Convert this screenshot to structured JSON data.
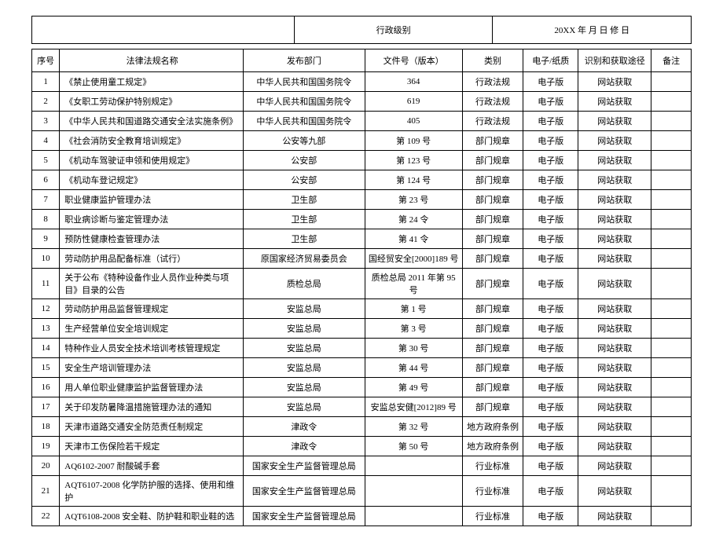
{
  "header": {
    "left": "",
    "center": "行政级别",
    "right": "20XX 年 月 日 修 日"
  },
  "columns": {
    "seq": "序号",
    "name": "法律法规名称",
    "dept": "发布部门",
    "doc": "文件号（版本）",
    "cat": "类别",
    "fmt": "电子/纸质",
    "src": "识别和获取途径",
    "note": "备注"
  },
  "rows": [
    {
      "seq": "1",
      "name": "《禁止使用童工规定》",
      "dept": "中华人民共和国国务院令",
      "doc": "364",
      "cat": "行政法规",
      "fmt": "电子版",
      "src": "网站获取",
      "note": ""
    },
    {
      "seq": "2",
      "name": "《女职工劳动保护特别规定》",
      "dept": "中华人民共和国国务院令",
      "doc": "619",
      "cat": "行政法规",
      "fmt": "电子版",
      "src": "网站获取",
      "note": ""
    },
    {
      "seq": "3",
      "name": "《中华人民共和国道路交通安全法实施条例》",
      "dept": "中华人民共和国国务院令",
      "doc": "405",
      "cat": "行政法规",
      "fmt": "电子版",
      "src": "网站获取",
      "note": ""
    },
    {
      "seq": "4",
      "name": "《社会消防安全教育培训规定》",
      "dept": "公安等九部",
      "doc": "第 109 号",
      "cat": "部门规章",
      "fmt": "电子版",
      "src": "网站获取",
      "note": ""
    },
    {
      "seq": "5",
      "name": "《机动车驾驶证申领和使用规定》",
      "dept": "公安部",
      "doc": "第 123 号",
      "cat": "部门规章",
      "fmt": "电子版",
      "src": "网站获取",
      "note": ""
    },
    {
      "seq": "6",
      "name": "《机动车登记规定》",
      "dept": "公安部",
      "doc": "第 124 号",
      "cat": "部门规章",
      "fmt": "电子版",
      "src": "网站获取",
      "note": ""
    },
    {
      "seq": "7",
      "name": "职业健康监护管理办法",
      "dept": "卫生部",
      "doc": "第 23 号",
      "cat": "部门规章",
      "fmt": "电子版",
      "src": "网站获取",
      "note": ""
    },
    {
      "seq": "8",
      "name": "职业病诊断与鉴定管理办法",
      "dept": "卫生部",
      "doc": "第 24 令",
      "cat": "部门规章",
      "fmt": "电子版",
      "src": "网站获取",
      "note": ""
    },
    {
      "seq": "9",
      "name": "预防性健康检查管理办法",
      "dept": "卫生部",
      "doc": "第 41 令",
      "cat": "部门规章",
      "fmt": "电子版",
      "src": "网站获取",
      "note": ""
    },
    {
      "seq": "10",
      "name": "劳动防护用品配备标准（试行）",
      "dept": "原国家经济贸易委员会",
      "doc": "国经贸安全[2000]189 号",
      "cat": "部门规章",
      "fmt": "电子版",
      "src": "网站获取",
      "note": ""
    },
    {
      "seq": "11",
      "name": "关于公布《特种设备作业人员作业种类与项目》目录的公告",
      "dept": "质检总局",
      "doc": "质检总局 2011 年第 95 号",
      "cat": "部门规章",
      "fmt": "电子版",
      "src": "网站获取",
      "note": ""
    },
    {
      "seq": "12",
      "name": "劳动防护用品监督管理规定",
      "dept": "安监总局",
      "doc": "第 1 号",
      "cat": "部门规章",
      "fmt": "电子版",
      "src": "网站获取",
      "note": ""
    },
    {
      "seq": "13",
      "name": "生产经营单位安全培训规定",
      "dept": "安监总局",
      "doc": "第 3 号",
      "cat": "部门规章",
      "fmt": "电子版",
      "src": "网站获取",
      "note": ""
    },
    {
      "seq": "14",
      "name": "特种作业人员安全技术培训考核管理规定",
      "dept": "安监总局",
      "doc": "第 30 号",
      "cat": "部门规章",
      "fmt": "电子版",
      "src": "网站获取",
      "note": ""
    },
    {
      "seq": "15",
      "name": "安全生产培训管理办法",
      "dept": "安监总局",
      "doc": "第 44 号",
      "cat": "部门规章",
      "fmt": "电子版",
      "src": "网站获取",
      "note": ""
    },
    {
      "seq": "16",
      "name": "用人单位职业健康监护监督管理办法",
      "dept": "安监总局",
      "doc": "第 49 号",
      "cat": "部门规章",
      "fmt": "电子版",
      "src": "网站获取",
      "note": ""
    },
    {
      "seq": "17",
      "name": "关于印发防暑降温措施管理办法的通知",
      "dept": "安监总局",
      "doc": "安监总安健[2012]89 号",
      "cat": "部门规章",
      "fmt": "电子版",
      "src": "网站获取",
      "note": ""
    },
    {
      "seq": "18",
      "name": "天津市道路交通安全防范责任制规定",
      "dept": "津政令",
      "doc": "第 32 号",
      "cat": "地方政府条例",
      "fmt": "电子版",
      "src": "网站获取",
      "note": ""
    },
    {
      "seq": "19",
      "name": "天津市工伤保险若干规定",
      "dept": "津政令",
      "doc": "第 50 号",
      "cat": "地方政府条例",
      "fmt": "电子版",
      "src": "网站获取",
      "note": ""
    },
    {
      "seq": "20",
      "name": "AQ6102-2007 耐酸碱手套",
      "dept": "国家安全生产监督管理总局",
      "doc": "",
      "cat": "行业标准",
      "fmt": "电子版",
      "src": "网站获取",
      "note": ""
    },
    {
      "seq": "21",
      "name": "AQT6107-2008 化学防护服的选择、使用和维护",
      "dept": "国家安全生产监督管理总局",
      "doc": "",
      "cat": "行业标准",
      "fmt": "电子版",
      "src": "网站获取",
      "note": ""
    },
    {
      "seq": "22",
      "name": "AQT6108-2008 安全鞋、防护鞋和职业鞋的选",
      "dept": "国家安全生产监督管理总局",
      "doc": "",
      "cat": "行业标准",
      "fmt": "电子版",
      "src": "网站获取",
      "note": ""
    }
  ]
}
